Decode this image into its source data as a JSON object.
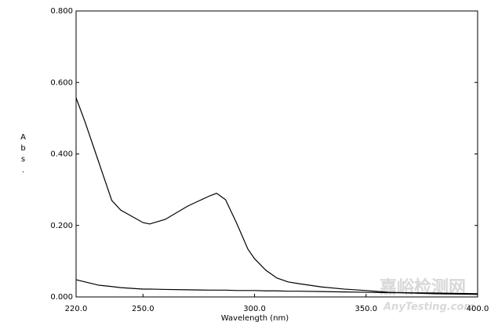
{
  "chart_data": {
    "type": "line",
    "x_label": "Wavelength (nm)",
    "y_label": "Abs.",
    "watermark": {
      "title": "嘉峪检测网",
      "subtitle": "AnyTesting.com"
    },
    "x": [
      220,
      224,
      230,
      236,
      240,
      250,
      253,
      260,
      270,
      280,
      283,
      287,
      292,
      297,
      300,
      305,
      310,
      315,
      320,
      330,
      340,
      350,
      360,
      380,
      400
    ],
    "series": [
      {
        "color": "#000000",
        "values": [
          0.557,
          0.49,
          0.38,
          0.27,
          0.243,
          0.208,
          0.204,
          0.217,
          0.254,
          0.283,
          0.29,
          0.272,
          0.206,
          0.134,
          0.107,
          0.075,
          0.053,
          0.042,
          0.037,
          0.028,
          0.022,
          0.018,
          0.013,
          0.009,
          0.007
        ]
      },
      {
        "color": "#000000",
        "values": [
          0.048,
          0.042,
          0.033,
          0.029,
          0.026,
          0.022,
          0.022,
          0.021,
          0.02,
          0.019,
          0.019,
          0.019,
          0.018,
          0.018,
          0.018,
          0.017,
          0.017,
          0.016,
          0.016,
          0.015,
          0.014,
          0.013,
          0.012,
          0.011,
          0.009
        ]
      }
    ],
    "xlim": [
      220,
      400
    ],
    "ylim": [
      0,
      0.8
    ],
    "xticks": [
      {
        "value": 220,
        "label": "220.0"
      },
      {
        "value": 250,
        "label": "250.0"
      },
      {
        "value": 300,
        "label": "300.0"
      },
      {
        "value": 350,
        "label": "350.0"
      },
      {
        "value": 400,
        "label": "400.0"
      }
    ],
    "yticks": [
      {
        "value": 0,
        "label": "0.000"
      },
      {
        "value": 0.2,
        "label": "0.200"
      },
      {
        "value": 0.4,
        "label": "0.400"
      },
      {
        "value": 0.6,
        "label": "0.600"
      },
      {
        "value": 0.8,
        "label": "0.800"
      }
    ],
    "grid": false
  }
}
